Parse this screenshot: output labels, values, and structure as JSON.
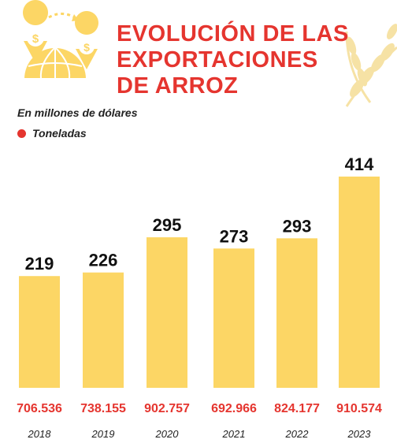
{
  "header": {
    "title_lines": [
      "EVOLUCIÓN DE LAS",
      "EXPORTACIONES",
      "DE ARROZ"
    ],
    "subtitle": "En millones de dólares",
    "legend_label": "Toneladas"
  },
  "colors": {
    "bar": "#fcd665",
    "accent_red": "#e5352f",
    "icon_yellow": "#fcd665",
    "wheat": "#f6e2a5"
  },
  "icons": [
    "dollar-pin-icon",
    "globe-icon",
    "rice-stalk-icon"
  ],
  "chart_data": {
    "type": "bar",
    "categories": [
      "2018",
      "2019",
      "2020",
      "2021",
      "2022",
      "2023"
    ],
    "values": [
      219,
      226,
      295,
      273,
      293,
      414
    ],
    "value_labels": [
      "219",
      "226",
      "295",
      "273",
      "293",
      "414"
    ],
    "tonnage_labels": [
      "706.536",
      "738.155",
      "902.757",
      "692.966",
      "824.177",
      "910.574"
    ],
    "title": "EVOLUCIÓN DE LAS EXPORTACIONES DE ARROZ",
    "subtitle": "En millones de dólares",
    "legend": [
      "Toneladas"
    ],
    "ylim": [
      0,
      414
    ],
    "grid": false
  }
}
